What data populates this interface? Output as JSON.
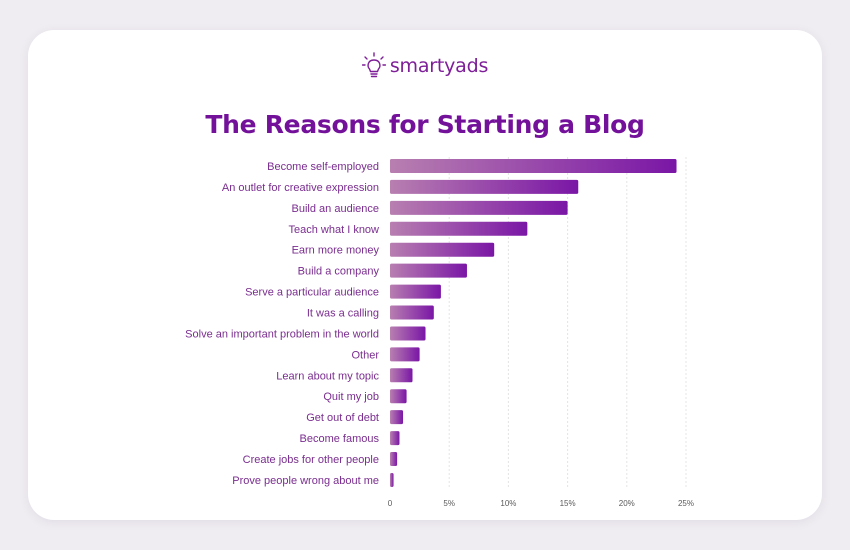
{
  "brand": {
    "name": "smartyads",
    "color": "#7e1e98",
    "icon": "lightbulb-icon"
  },
  "chart_data": {
    "type": "bar",
    "orientation": "horizontal",
    "title": "The Reasons for Starting a Blog",
    "categories": [
      "Become self-employed",
      "An outlet for creative expression",
      "Build an audience",
      "Teach what I know",
      "Earn more money",
      "Build a company",
      "Serve a particular audience",
      "It was a calling",
      "Solve an important problem in the world",
      "Other",
      "Learn about my topic",
      "Quit my job",
      "Get out of debt",
      "Become famous",
      "Create jobs for other people",
      "Prove people wrong about me"
    ],
    "values": [
      24.2,
      15.9,
      15.0,
      11.6,
      8.8,
      6.5,
      4.3,
      3.7,
      3.0,
      2.5,
      1.9,
      1.4,
      1.1,
      0.8,
      0.6,
      0.3
    ],
    "unit": "%",
    "xlim": [
      0,
      25
    ],
    "xticks": [
      0,
      5,
      10,
      15,
      20,
      25
    ],
    "xtick_labels": [
      "0",
      "5%",
      "10%",
      "15%",
      "20%",
      "25%"
    ],
    "xlabel": "",
    "ylabel": "",
    "grid": true,
    "bar_gradient": [
      "#b87fb0",
      "#7a16a6"
    ],
    "label_color": "#7a2d8f"
  }
}
